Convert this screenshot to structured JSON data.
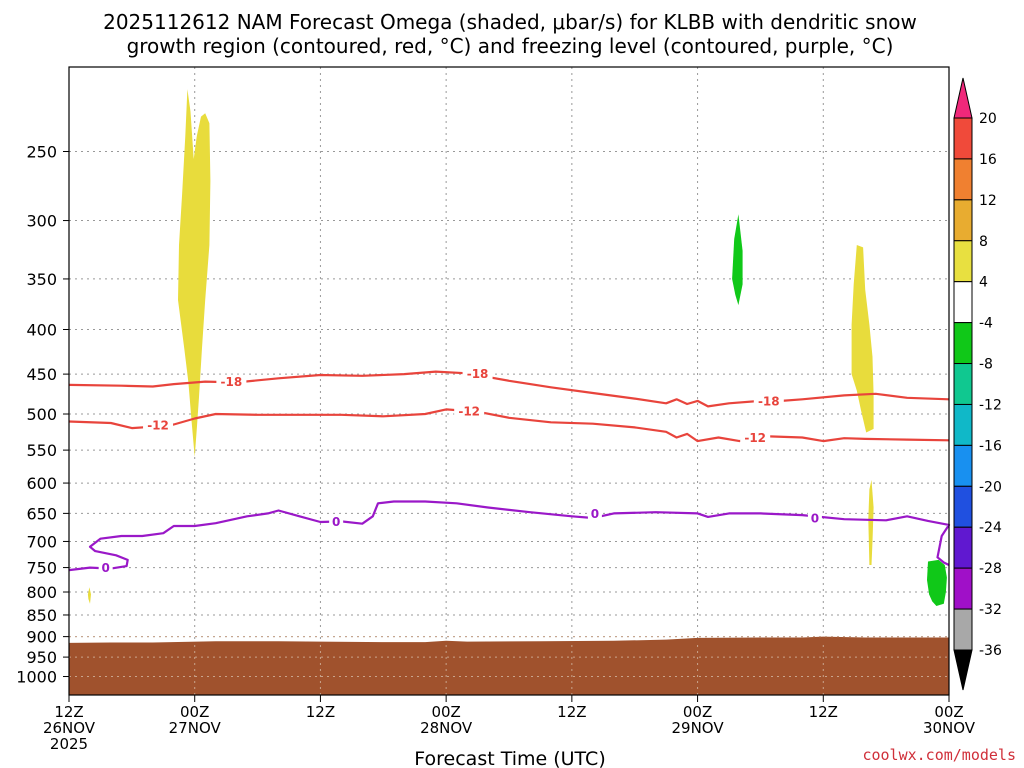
{
  "title_line1": "2025112612 NAM Forecast Omega (shaded, μbar/s) for KLBB with dendritic snow",
  "title_line2": "growth region (contoured, red, °C) and freezing level (contoured, purple, °C)",
  "xlabel": "Forecast Time (UTC)",
  "credit": "coolwx.com/models",
  "chart_data": {
    "type": "contour",
    "x_axis": {
      "unit": "hours from 2025-11-26 12Z",
      "range": [
        0,
        84
      ],
      "ticks": [
        {
          "x": 0,
          "line1": "12Z",
          "line2": "26NOV",
          "line3": "2025"
        },
        {
          "x": 12,
          "line1": "00Z",
          "line2": "27NOV",
          "line3": ""
        },
        {
          "x": 24,
          "line1": "12Z",
          "line2": "",
          "line3": ""
        },
        {
          "x": 36,
          "line1": "00Z",
          "line2": "28NOV",
          "line3": ""
        },
        {
          "x": 48,
          "line1": "12Z",
          "line2": "",
          "line3": ""
        },
        {
          "x": 60,
          "line1": "00Z",
          "line2": "29NOV",
          "line3": ""
        },
        {
          "x": 72,
          "line1": "12Z",
          "line2": "",
          "line3": ""
        },
        {
          "x": 84,
          "line1": "00Z",
          "line2": "30NOV",
          "line3": ""
        }
      ]
    },
    "y_axis": {
      "unit": "hPa",
      "scale": "log",
      "reversed": true,
      "range": [
        200,
        1050
      ],
      "ticks": [
        250,
        300,
        350,
        400,
        450,
        500,
        550,
        600,
        650,
        700,
        750,
        800,
        850,
        900,
        950,
        1000
      ]
    },
    "grid": true,
    "colorbar": {
      "placement": "right",
      "labels": [
        "20",
        "16",
        "12",
        "8",
        "4",
        "-4",
        "-8",
        "-12",
        "-16",
        "-20",
        "-24",
        "-28",
        "-32",
        "-36"
      ],
      "colors": [
        "#f0287a",
        "#f04a3a",
        "#f08030",
        "#e8ac30",
        "#e8e040",
        "#ffffff",
        "#10c818",
        "#10c890",
        "#10b8c8",
        "#1890f0",
        "#2050e0",
        "#6018d0",
        "#a010c8",
        "#a8a8a8",
        "#000000"
      ]
    },
    "omega_regions": [
      {
        "color": "#e8dc3c",
        "points": [
          [
            10.4,
            370
          ],
          [
            10.5,
            320
          ],
          [
            10.8,
            280
          ],
          [
            11.1,
            240
          ],
          [
            11.3,
            212
          ],
          [
            11.6,
            225
          ],
          [
            11.9,
            255
          ],
          [
            12.2,
            240
          ],
          [
            12.6,
            228
          ],
          [
            13.0,
            226
          ],
          [
            13.4,
            232
          ],
          [
            13.5,
            270
          ],
          [
            13.4,
            320
          ],
          [
            13.0,
            370
          ],
          [
            12.7,
            420
          ],
          [
            12.4,
            480
          ],
          [
            12.2,
            520
          ],
          [
            12.0,
            560
          ],
          [
            11.7,
            510
          ],
          [
            11.4,
            460
          ],
          [
            11.0,
            420
          ]
        ]
      },
      {
        "color": "#e8dc3c",
        "points": [
          [
            1.8,
            805
          ],
          [
            1.95,
            790
          ],
          [
            2.1,
            805
          ],
          [
            2.0,
            825
          ],
          [
            1.85,
            815
          ]
        ]
      },
      {
        "color": "#10c818",
        "points": [
          [
            63.3,
            350
          ],
          [
            63.5,
            315
          ],
          [
            63.9,
            295
          ],
          [
            64.3,
            325
          ],
          [
            64.3,
            355
          ],
          [
            63.9,
            375
          ],
          [
            63.6,
            365
          ]
        ]
      },
      {
        "color": "#e8dc3c",
        "points": [
          [
            74.7,
            450
          ],
          [
            74.7,
            395
          ],
          [
            74.9,
            355
          ],
          [
            75.2,
            320
          ],
          [
            75.8,
            322
          ],
          [
            76.0,
            360
          ],
          [
            76.4,
            395
          ],
          [
            76.7,
            430
          ],
          [
            76.8,
            475
          ],
          [
            76.8,
            520
          ],
          [
            76.1,
            525
          ],
          [
            75.6,
            495
          ],
          [
            75.2,
            470
          ]
        ]
      },
      {
        "color": "#e8dc3c",
        "points": [
          [
            76.3,
            660
          ],
          [
            76.4,
            610
          ],
          [
            76.6,
            595
          ],
          [
            76.8,
            640
          ],
          [
            76.7,
            700
          ],
          [
            76.6,
            745
          ],
          [
            76.4,
            745
          ]
        ]
      },
      {
        "color": "#10c818",
        "points": [
          [
            81.9,
            775
          ],
          [
            82.0,
            738
          ],
          [
            83.0,
            735
          ],
          [
            83.6,
            745
          ],
          [
            83.8,
            770
          ],
          [
            83.7,
            800
          ],
          [
            83.5,
            825
          ],
          [
            82.8,
            830
          ],
          [
            82.4,
            820
          ],
          [
            82.1,
            805
          ]
        ]
      }
    ],
    "terrain": {
      "color": "#a0522d",
      "top_points": [
        [
          0,
          915
        ],
        [
          4,
          914
        ],
        [
          8,
          914
        ],
        [
          14,
          911
        ],
        [
          20,
          911
        ],
        [
          24,
          912
        ],
        [
          30,
          913
        ],
        [
          34,
          913
        ],
        [
          36,
          910
        ],
        [
          38,
          912
        ],
        [
          45,
          911
        ],
        [
          52,
          910
        ],
        [
          57,
          907
        ],
        [
          60,
          903
        ],
        [
          66,
          902
        ],
        [
          70,
          902
        ],
        [
          72,
          900
        ],
        [
          76,
          902
        ],
        [
          84,
          902
        ]
      ],
      "bottom_p": 1050
    },
    "contours": [
      {
        "color": "#e8443c",
        "level": "-18",
        "points": [
          [
            0,
            463
          ],
          [
            5,
            464
          ],
          [
            8,
            465
          ],
          [
            10,
            462
          ],
          [
            13,
            459
          ],
          [
            16,
            460
          ],
          [
            20,
            455
          ],
          [
            24,
            451
          ],
          [
            28,
            452
          ],
          [
            32,
            450
          ],
          [
            35,
            447
          ],
          [
            38,
            449
          ],
          [
            42,
            458
          ],
          [
            46,
            466
          ],
          [
            50,
            473
          ],
          [
            54,
            480
          ],
          [
            57,
            486
          ],
          [
            58,
            481
          ],
          [
            59,
            487
          ],
          [
            60,
            483
          ],
          [
            61,
            490
          ],
          [
            63,
            486
          ],
          [
            66,
            483
          ],
          [
            68,
            483
          ],
          [
            70,
            481
          ],
          [
            74,
            476
          ],
          [
            77,
            474
          ],
          [
            80,
            479
          ],
          [
            84,
            481
          ]
        ],
        "labels": [
          {
            "x": 15.5,
            "p": 459,
            "text": "-18"
          },
          {
            "x": 39,
            "p": 449,
            "text": "-18"
          },
          {
            "x": 66.8,
            "p": 483,
            "text": "-18"
          }
        ]
      },
      {
        "color": "#e8443c",
        "level": "-12",
        "points": [
          [
            0,
            510
          ],
          [
            4,
            512
          ],
          [
            6,
            519
          ],
          [
            8,
            517
          ],
          [
            10,
            514
          ],
          [
            12,
            506
          ],
          [
            14,
            500
          ],
          [
            18,
            501
          ],
          [
            22,
            501
          ],
          [
            26,
            501
          ],
          [
            30,
            503
          ],
          [
            34,
            500
          ],
          [
            36,
            494
          ],
          [
            39,
            497
          ],
          [
            42,
            505
          ],
          [
            46,
            511
          ],
          [
            50,
            513
          ],
          [
            54,
            518
          ],
          [
            57,
            524
          ],
          [
            58,
            532
          ],
          [
            59,
            527
          ],
          [
            60,
            537
          ],
          [
            62,
            532
          ],
          [
            64,
            537
          ],
          [
            66,
            530
          ],
          [
            70,
            532
          ],
          [
            72,
            537
          ],
          [
            74,
            533
          ],
          [
            76,
            534
          ],
          [
            80,
            535
          ],
          [
            84,
            536
          ]
        ],
        "labels": [
          {
            "x": 8.5,
            "p": 515,
            "text": "-12"
          },
          {
            "x": 38.2,
            "p": 496,
            "text": "-12"
          },
          {
            "x": 65.5,
            "p": 532,
            "text": "-12"
          }
        ]
      },
      {
        "color": "#9a18c8",
        "level": "0",
        "points": [
          [
            0,
            755
          ],
          [
            2,
            750
          ],
          [
            4,
            752
          ],
          [
            5.5,
            747
          ],
          [
            5.6,
            735
          ],
          [
            4.5,
            726
          ],
          [
            2.5,
            718
          ],
          [
            2,
            710
          ],
          [
            3,
            695
          ],
          [
            5,
            690
          ],
          [
            7,
            690
          ],
          [
            9,
            685
          ],
          [
            10,
            672
          ],
          [
            12,
            672
          ],
          [
            14,
            667
          ],
          [
            17,
            655
          ],
          [
            19,
            650
          ],
          [
            20,
            645
          ],
          [
            22,
            655
          ],
          [
            24,
            665
          ],
          [
            26,
            664
          ],
          [
            28,
            668
          ],
          [
            29,
            655
          ],
          [
            29.5,
            633
          ],
          [
            31,
            630
          ],
          [
            34,
            630
          ],
          [
            37,
            633
          ],
          [
            40,
            640
          ],
          [
            44,
            648
          ],
          [
            48,
            655
          ],
          [
            50,
            658
          ],
          [
            52,
            650
          ],
          [
            56,
            648
          ],
          [
            60,
            650
          ],
          [
            61,
            656
          ],
          [
            63,
            650
          ],
          [
            66,
            650
          ],
          [
            70,
            653
          ],
          [
            74,
            660
          ],
          [
            78,
            662
          ],
          [
            80,
            655
          ],
          [
            82,
            663
          ],
          [
            84,
            670
          ],
          [
            83.3,
            690
          ],
          [
            82.9,
            730
          ],
          [
            83.5,
            740
          ],
          [
            84,
            745
          ]
        ],
        "labels": [
          {
            "x": 3.5,
            "p": 750,
            "text": "0"
          },
          {
            "x": 25.5,
            "p": 664,
            "text": "0"
          },
          {
            "x": 50.2,
            "p": 650,
            "text": "0"
          },
          {
            "x": 71.2,
            "p": 658,
            "text": "0"
          }
        ]
      }
    ]
  }
}
